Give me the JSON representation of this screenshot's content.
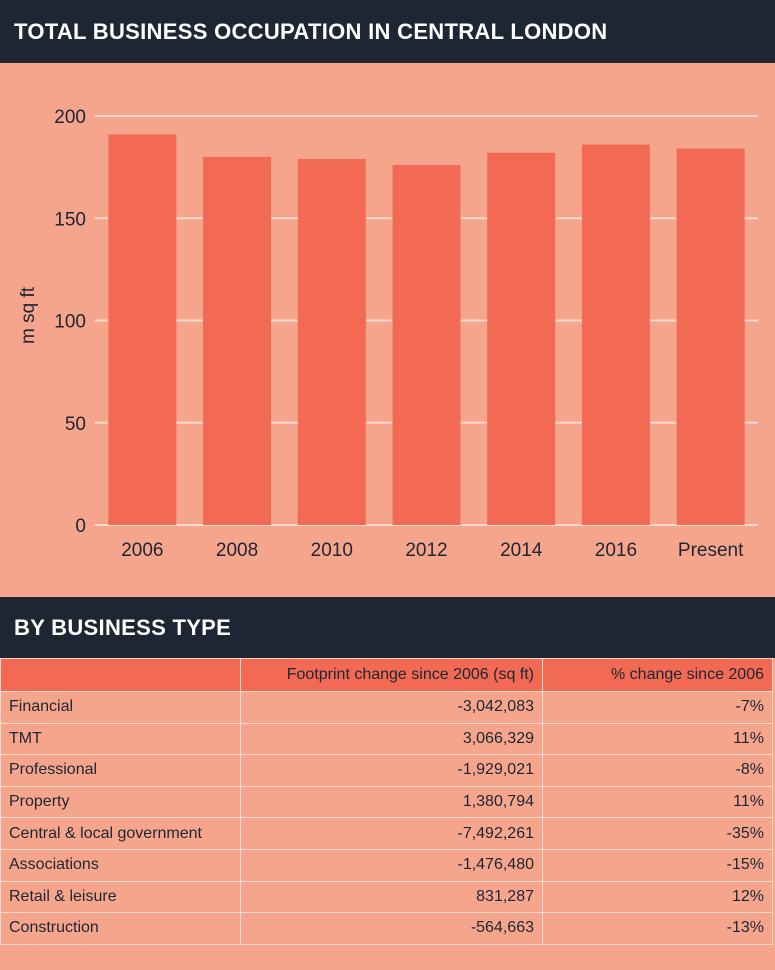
{
  "chart_title": "TOTAL BUSINESS OCCUPATION IN CENTRAL LONDON",
  "table_title": "BY BUSINESS TYPE",
  "chart_data": {
    "type": "bar",
    "title": "TOTAL BUSINESS OCCUPATION IN CENTRAL LONDON",
    "categories": [
      "2006",
      "2008",
      "2010",
      "2012",
      "2014",
      "2016",
      "Present"
    ],
    "values": [
      191,
      180,
      179,
      176,
      182,
      186,
      184
    ],
    "xlabel": "",
    "ylabel": "m sq ft",
    "ylim": [
      0,
      200
    ],
    "yticks": [
      0,
      50,
      100,
      150,
      200
    ],
    "grid": true,
    "bar_color": "#f26a53",
    "grid_color": "#fbd9cc"
  },
  "table": {
    "columns": [
      "",
      "Footprint change since 2006 (sq ft)",
      "% change since 2006"
    ],
    "rows": [
      [
        "Financial",
        "-3,042,083",
        "-7%"
      ],
      [
        "TMT",
        "3,066,329",
        "11%"
      ],
      [
        "Professional",
        "-1,929,021",
        "-8%"
      ],
      [
        "Property",
        "1,380,794",
        "11%"
      ],
      [
        "Central & local government",
        "-7,492,261",
        "-35%"
      ],
      [
        "Associations",
        "-1,476,480",
        "-15%"
      ],
      [
        "Retail & leisure",
        "831,287",
        "12%"
      ],
      [
        "Construction",
        "-564,663",
        "-13%"
      ]
    ]
  },
  "colors": {
    "background": "#f6a58d",
    "header_bg": "#1e2633",
    "accent": "#f26a53"
  }
}
